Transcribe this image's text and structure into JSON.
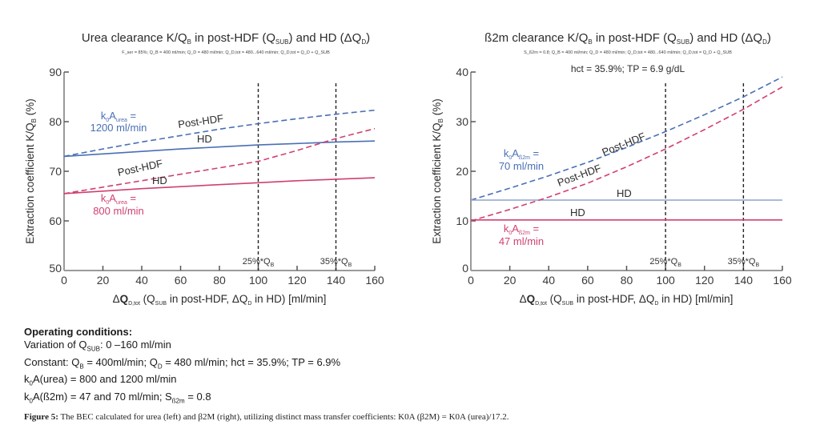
{
  "figure": {
    "caption_label": "Figure 5:",
    "caption_text": "The BEC calculated for urea (left) and β2M (right), utilizing distinct mass transfer coefficients: K0A (β2M) = K0A (urea)/17.2."
  },
  "operating_conditions": {
    "heading": "Operating conditions:",
    "lines": [
      "Variation of Q_SUB: 0 –160 ml/min",
      "Constant: Q_B = 400ml/min; Q_D = 480 ml/min; hct = 35.9%; TP = 6.9%",
      "k0A(urea) = 800 and 1200 ml/min",
      "k0A(ß2m) = 47 and 70 ml/min; S_ß2m = 0.8"
    ]
  },
  "chart_data": [
    {
      "type": "line",
      "title": "Urea clearance K/Q_B in post-HDF (Q_SUB) and HD (ΔQ_D)",
      "subtitle": "F_ser = 85%; Q_B = 400 ml/min; Q_D = 480 ml/min; Q_D,tot = 480...640 ml/min; Q_D,tot = Q_D + Q_SUB",
      "xlabel": "ΔQ_D,tot (Q_SUB in post-HDF, ΔQ_D in HD) [ml/min]",
      "ylabel": "Extraction coefficient K/Q_B (%)",
      "xlim": [
        0,
        160
      ],
      "ylim": [
        50,
        90
      ],
      "xticks": [
        0,
        20,
        40,
        60,
        80,
        100,
        120,
        140,
        160
      ],
      "yticks": [
        50,
        60,
        70,
        80,
        90
      ],
      "grid": false,
      "x": [
        0,
        20,
        40,
        60,
        80,
        100,
        120,
        140,
        160
      ],
      "series": [
        {
          "name": "Post-HDF k0A 1200",
          "style": "dashed",
          "color": "#4a6fb5",
          "values": [
            73.0,
            74.5,
            75.9,
            77.2,
            78.5,
            79.6,
            80.6,
            81.5,
            82.3
          ]
        },
        {
          "name": "HD k0A 1200",
          "style": "solid",
          "color": "#4a6fb5",
          "values": [
            73.0,
            73.5,
            74.0,
            74.5,
            74.9,
            75.3,
            75.6,
            75.9,
            76.1
          ]
        },
        {
          "name": "Post-HDF k0A 800",
          "style": "dashed",
          "color": "#d0406e",
          "values": [
            65.5,
            66.8,
            68.1,
            69.4,
            70.7,
            72.0,
            74.2,
            76.6,
            78.6
          ]
        },
        {
          "name": "HD k0A 800",
          "style": "solid",
          "color": "#d0406e",
          "values": [
            65.5,
            66.0,
            66.5,
            66.9,
            67.3,
            67.7,
            68.1,
            68.4,
            68.7
          ]
        }
      ],
      "vlines": [
        {
          "x": 100,
          "label": "25%*Q_B"
        },
        {
          "x": 140,
          "label": "35%*Q_B"
        }
      ],
      "annotations": [
        {
          "text": "k0A_urea =",
          "line2": "1200 ml/min",
          "color": "#4a6fb5"
        },
        {
          "text": "k0A_urea =",
          "line2": "800 ml/min",
          "color": "#d0406e"
        },
        {
          "text": "Post-HDF"
        },
        {
          "text": "HD"
        },
        {
          "text": "Post-HDF"
        },
        {
          "text": "HD"
        }
      ]
    },
    {
      "type": "line",
      "title": "ß2m clearance K/Q_B in post-HDF (Q_SUB) and HD (ΔQ_D)",
      "subtitle": "S_ß2m = 0.8; Q_B = 400 ml/min; Q_D = 480 ml/min; Q_D,tot = 480...640 ml/min; Q_D,tot = Q_D + Q_SUB",
      "subtitle2": "hct = 35.9%; TP = 6.9 g/dL",
      "xlabel": "ΔQ_D,tot (Q_SUB in post-HDF, ΔQ_D in HD) [ml/min]",
      "ylabel": "Extraction coefficient K/Q_B (%)",
      "xlim": [
        0,
        160
      ],
      "ylim": [
        0,
        40
      ],
      "xticks": [
        0,
        20,
        40,
        60,
        80,
        100,
        120,
        140,
        160
      ],
      "yticks": [
        0,
        10,
        20,
        30,
        40
      ],
      "grid": false,
      "x": [
        0,
        20,
        40,
        60,
        80,
        100,
        120,
        140,
        160
      ],
      "series": [
        {
          "name": "Post-HDF k0A 70",
          "style": "dashed",
          "color": "#4a6fb5",
          "values": [
            14.2,
            16.6,
            19.1,
            21.8,
            24.8,
            28.0,
            31.4,
            35.0,
            39.0
          ]
        },
        {
          "name": "HD k0A 70",
          "style": "solid",
          "color": "#8ea2cf",
          "values": [
            14.2,
            14.2,
            14.2,
            14.2,
            14.2,
            14.2,
            14.2,
            14.2,
            14.2
          ]
        },
        {
          "name": "Post-HDF k0A 47",
          "style": "dashed",
          "color": "#d0406e",
          "values": [
            10.0,
            12.3,
            14.8,
            17.6,
            20.9,
            24.5,
            28.4,
            32.5,
            37.0
          ]
        },
        {
          "name": "HD k0A 47",
          "style": "solid",
          "color": "#d0406e",
          "values": [
            10.2,
            10.2,
            10.2,
            10.2,
            10.2,
            10.2,
            10.2,
            10.2,
            10.2
          ]
        }
      ],
      "vlines": [
        {
          "x": 100,
          "label": "25%*Q_B"
        },
        {
          "x": 140,
          "label": "35%*Q_B"
        }
      ],
      "annotations": [
        {
          "text": "k0A_ß2m =",
          "line2": "70 ml/min",
          "color": "#4a6fb5"
        },
        {
          "text": "k0A_ß2m =",
          "line2": "47 ml/min",
          "color": "#d0406e"
        },
        {
          "text": "Post-HDF"
        },
        {
          "text": "Post-HDF"
        },
        {
          "text": "HD"
        },
        {
          "text": "HD"
        }
      ]
    }
  ]
}
